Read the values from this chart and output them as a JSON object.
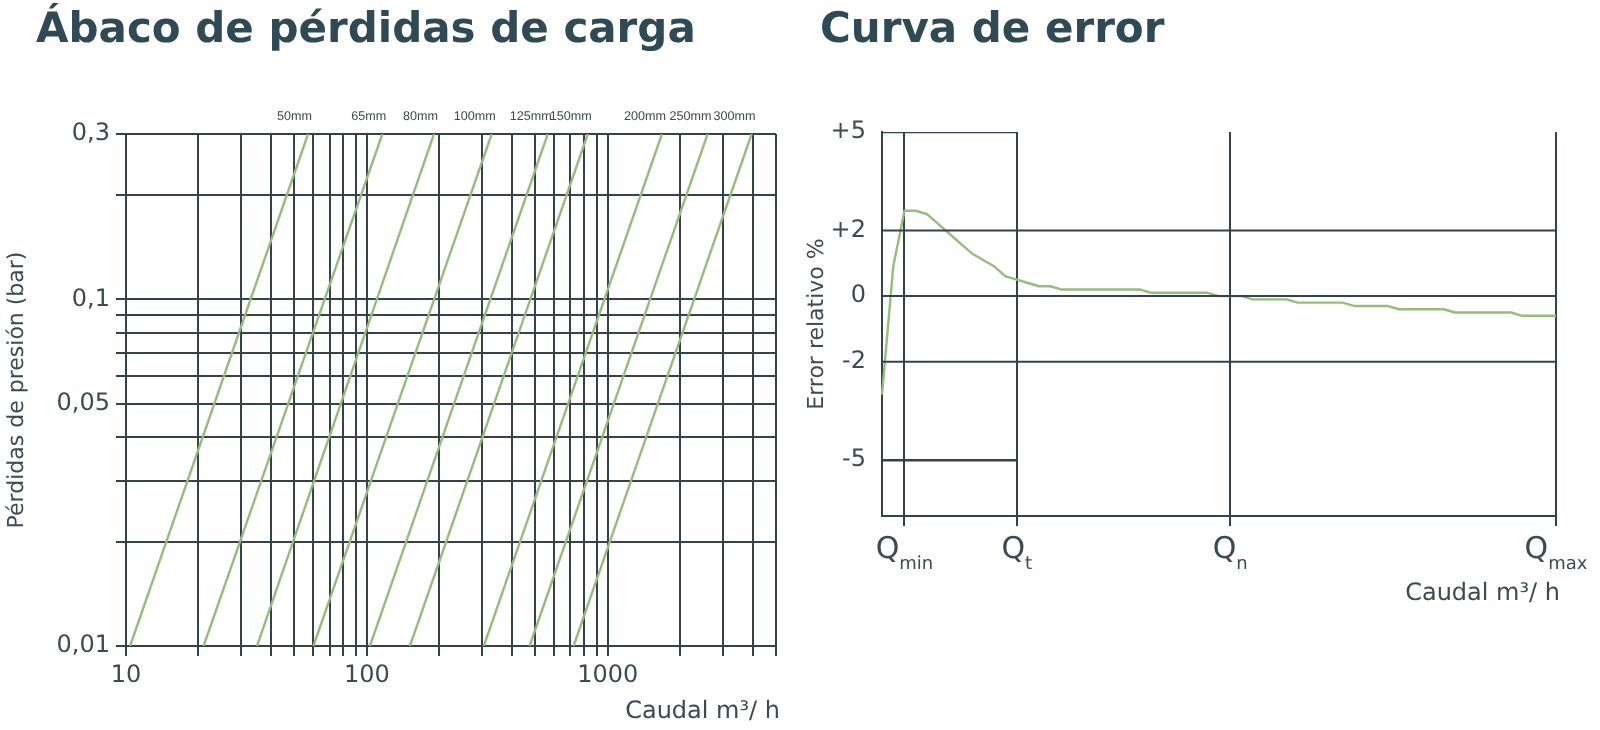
{
  "chart_data": [
    {
      "type": "line",
      "title": "Ábaco de pérdidas de carga",
      "xlabel": "Caudal m³/ h",
      "ylabel": "Pérdidas de presión (bar)",
      "log": "xy",
      "grid": true,
      "legend": false,
      "marker": "none",
      "xlim": [
        10,
        5000
      ],
      "ylim": [
        0.01,
        0.3
      ],
      "xticks": [
        10,
        {
          "value": 20,
          "label": null
        },
        {
          "value": 30,
          "label": null
        },
        {
          "value": 40,
          "label": null
        },
        {
          "value": 50,
          "label": null
        },
        {
          "value": 60,
          "label": null
        },
        {
          "value": 70,
          "label": null
        },
        {
          "value": 80,
          "label": null
        },
        {
          "value": 90,
          "label": null
        },
        100,
        {
          "value": 200,
          "label": null
        },
        {
          "value": 300,
          "label": null
        },
        {
          "value": 400,
          "label": null
        },
        {
          "value": 500,
          "label": null
        },
        {
          "value": 600,
          "label": null
        },
        {
          "value": 700,
          "label": null
        },
        {
          "value": 800,
          "label": null
        },
        {
          "value": 900,
          "label": null
        },
        1000,
        {
          "value": 2000,
          "label": null
        },
        {
          "value": 3000,
          "label": null
        },
        {
          "value": 4000,
          "label": null
        },
        {
          "value": 5000,
          "label": null
        }
      ],
      "yticks": [
        {
          "value": 0.01,
          "label": "0,01"
        },
        {
          "value": 0.02,
          "label": null
        },
        {
          "value": 0.03,
          "label": null
        },
        {
          "value": 0.04,
          "label": null
        },
        {
          "value": 0.05,
          "label": "0,05"
        },
        {
          "value": 0.06,
          "label": null
        },
        {
          "value": 0.07,
          "label": null
        },
        {
          "value": 0.08,
          "label": null
        },
        {
          "value": 0.09,
          "label": null
        },
        {
          "value": 0.1,
          "label": "0,1"
        },
        {
          "value": 0.2,
          "label": null
        },
        {
          "value": 0.3,
          "label": "0,3"
        }
      ],
      "series": [
        {
          "name": "50mm",
          "color": "#97bb7c",
          "x": [
            10.4,
            57
          ],
          "values": [
            0.01,
            0.3
          ]
        },
        {
          "name": "65mm",
          "color": "#97bb7c",
          "x": [
            21,
            116
          ],
          "values": [
            0.01,
            0.3
          ]
        },
        {
          "name": "80mm",
          "color": "#97bb7c",
          "x": [
            35,
            190
          ],
          "values": [
            0.01,
            0.3
          ]
        },
        {
          "name": "100mm",
          "color": "#97bb7c",
          "x": [
            60,
            330
          ],
          "values": [
            0.01,
            0.3
          ]
        },
        {
          "name": "125mm",
          "color": "#97bb7c",
          "x": [
            103,
            564
          ],
          "values": [
            0.01,
            0.3
          ]
        },
        {
          "name": "150mm",
          "color": "#97bb7c",
          "x": [
            151,
            827
          ],
          "values": [
            0.01,
            0.3
          ]
        },
        {
          "name": "200mm",
          "color": "#97bb7c",
          "x": [
            306,
            1680
          ],
          "values": [
            0.01,
            0.3
          ]
        },
        {
          "name": "250mm",
          "color": "#97bb7c",
          "x": [
            474,
            2600
          ],
          "values": [
            0.01,
            0.3
          ]
        },
        {
          "name": "300mm",
          "color": "#97bb7c",
          "x": [
            722,
            3960
          ],
          "values": [
            0.01,
            0.3
          ]
        }
      ]
    },
    {
      "type": "line",
      "title": "Curva de error",
      "xlabel": "Caudal m³/ h",
      "ylabel": "Error relativo %",
      "grid": "x",
      "legend": false,
      "marker": "none",
      "ylim": [
        -6.7,
        5
      ],
      "categories": [
        null,
        null,
        "Q$_{min}$",
        null,
        null,
        null,
        null,
        null,
        null,
        null,
        null,
        null,
        "Q$_{t}$",
        null,
        null,
        null,
        null,
        null,
        null,
        null,
        null,
        null,
        null,
        null,
        null,
        null,
        null,
        null,
        null,
        null,
        null,
        "Q$_{n}$",
        null,
        null,
        null,
        null,
        null,
        null,
        null,
        null,
        null,
        null,
        null,
        null,
        null,
        null,
        null,
        null,
        null,
        null,
        null,
        null,
        null,
        null,
        null,
        null,
        null,
        null,
        null,
        null,
        "Q$_{max}$"
      ],
      "yticks": [
        {
          "value": 5,
          "label": "+5"
        },
        {
          "value": 2,
          "label": "+2"
        },
        0,
        -2,
        -5
      ],
      "ref_lines": [
        {
          "axis": "y",
          "value": 2,
          "color": "#34434b"
        },
        {
          "axis": "y",
          "value": 0,
          "color": "#34434b"
        },
        {
          "axis": "y",
          "value": -2,
          "color": "#34434b"
        }
      ],
      "series": [
        {
          "color": "#34434b",
          "values": [
            5,
            5,
            5,
            5,
            5,
            5,
            5,
            5,
            5,
            5,
            5,
            5,
            5,
            null,
            null,
            null,
            null,
            null,
            null,
            null,
            null,
            null,
            null,
            null,
            null,
            null,
            null,
            null,
            null,
            null,
            null,
            null,
            null,
            null,
            null,
            null,
            null,
            null,
            null,
            null,
            null,
            null,
            null,
            null,
            null,
            null,
            null,
            null,
            null,
            null,
            null,
            null,
            null,
            null,
            null,
            null,
            null,
            null,
            null,
            null,
            null
          ]
        },
        {
          "color": "#34434b",
          "values": [
            -5,
            -5,
            -5,
            -5,
            -5,
            -5,
            -5,
            -5,
            -5,
            -5,
            -5,
            -5,
            -5,
            null,
            null,
            null,
            null,
            null,
            null,
            null,
            null,
            null,
            null,
            null,
            null,
            null,
            null,
            null,
            null,
            null,
            null,
            null,
            null,
            null,
            null,
            null,
            null,
            null,
            null,
            null,
            null,
            null,
            null,
            null,
            null,
            null,
            null,
            null,
            null,
            null,
            null,
            null,
            null,
            null,
            null,
            null,
            null,
            null,
            null,
            null,
            null
          ]
        },
        {
          "color": "#97bb7c",
          "values": [
            -3.0,
            0.9,
            2.6,
            2.6,
            2.5,
            2.2,
            1.9,
            1.6,
            1.3,
            1.1,
            0.9,
            0.6,
            0.5,
            0.4,
            0.3,
            0.3,
            0.2,
            0.2,
            0.2,
            0.2,
            0.2,
            0.2,
            0.2,
            0.2,
            0.1,
            0.1,
            0.1,
            0.1,
            0.1,
            0.1,
            0.0,
            0.0,
            0.0,
            -0.1,
            -0.1,
            -0.1,
            -0.1,
            -0.2,
            -0.2,
            -0.2,
            -0.2,
            -0.2,
            -0.3,
            -0.3,
            -0.3,
            -0.3,
            -0.4,
            -0.4,
            -0.4,
            -0.4,
            -0.4,
            -0.5,
            -0.5,
            -0.5,
            -0.5,
            -0.5,
            -0.5,
            -0.6,
            -0.6,
            -0.6,
            -0.6
          ]
        }
      ]
    }
  ]
}
